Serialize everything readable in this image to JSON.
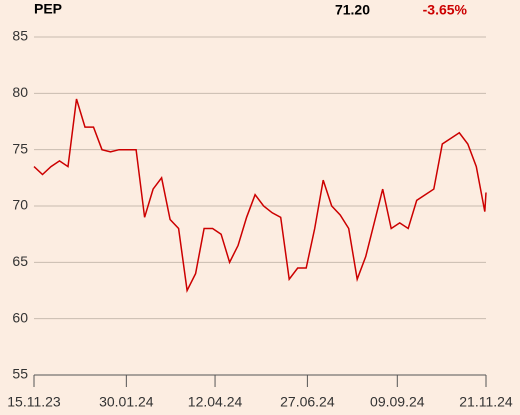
{
  "chart_data": {
    "type": "line",
    "ticker": "PEP",
    "last_price": "71.20",
    "change": "-3.65%",
    "xlim": [
      "2023-11-15",
      "2024-11-21"
    ],
    "xticks": [
      {
        "value": "2023-11-15",
        "label": "15.11.23"
      },
      {
        "value": "2024-01-30",
        "label": "30.01.24"
      },
      {
        "value": "2024-04-12",
        "label": "12.04.24"
      },
      {
        "value": "2024-06-27",
        "label": "27.06.24"
      },
      {
        "value": "2024-09-09",
        "label": "09.09.24"
      },
      {
        "value": "2024-11-21",
        "label": "21.11.24"
      }
    ],
    "ylim": [
      55,
      85
    ],
    "yticks": [
      55,
      60,
      65,
      70,
      75,
      80,
      85
    ],
    "grid": true,
    "x": [
      "2023-11-15",
      "2023-11-22",
      "2023-11-29",
      "2023-12-06",
      "2023-12-13",
      "2023-12-20",
      "2023-12-27",
      "2024-01-03",
      "2024-01-10",
      "2024-01-17",
      "2024-01-24",
      "2024-01-31",
      "2024-02-07",
      "2024-02-14",
      "2024-02-21",
      "2024-02-28",
      "2024-03-06",
      "2024-03-13",
      "2024-03-20",
      "2024-03-27",
      "2024-04-03",
      "2024-04-10",
      "2024-04-17",
      "2024-04-24",
      "2024-05-01",
      "2024-05-08",
      "2024-05-15",
      "2024-05-22",
      "2024-05-29",
      "2024-06-05",
      "2024-06-12",
      "2024-06-19",
      "2024-06-26",
      "2024-07-03",
      "2024-07-10",
      "2024-07-17",
      "2024-07-24",
      "2024-07-31",
      "2024-08-07",
      "2024-08-14",
      "2024-08-21",
      "2024-08-28",
      "2024-09-04",
      "2024-09-11",
      "2024-09-18",
      "2024-09-25",
      "2024-10-02",
      "2024-10-09",
      "2024-10-16",
      "2024-10-23",
      "2024-10-30",
      "2024-11-06",
      "2024-11-13",
      "2024-11-20",
      "2024-11-21"
    ],
    "series": [
      {
        "name": "PEP",
        "color": "#cc0000",
        "values": [
          73.5,
          72.8,
          73.5,
          74,
          73.5,
          79.5,
          77,
          77,
          75,
          74.8,
          75,
          75,
          75,
          69,
          71.5,
          72.5,
          68.8,
          68,
          62.5,
          64,
          68,
          68,
          67.5,
          65,
          66.5,
          69,
          71,
          70,
          69.4,
          69,
          63.5,
          64.5,
          64.5,
          68,
          72.3,
          70,
          69.2,
          68,
          63.5,
          65.5,
          68.5,
          71.5,
          68,
          68.5,
          68,
          70.5,
          71,
          71.5,
          75.5,
          76,
          76.5,
          75.5,
          73.5,
          69.5,
          71.2
        ]
      }
    ]
  }
}
